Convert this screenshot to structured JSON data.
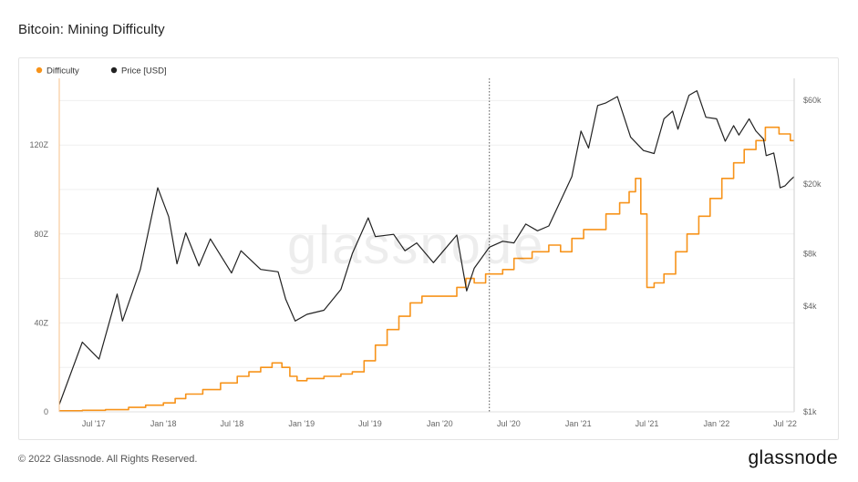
{
  "page": {
    "title": "Bitcoin: Mining Difficulty",
    "copyright": "© 2022 Glassnode. All Rights Reserved.",
    "brand": "glassnode",
    "watermark": "glassnode"
  },
  "chart_data": {
    "type": "line",
    "title": "Bitcoin: Mining Difficulty",
    "legend": {
      "position": "top-left",
      "entries": [
        {
          "name": "Difficulty",
          "color": "#f7931a"
        },
        {
          "name": "Price [USD]",
          "color": "#222222"
        }
      ]
    },
    "x_ticks": [
      "Jul '17",
      "Jan '18",
      "Jul '18",
      "Jan '19",
      "Jul '19",
      "Jan '20",
      "Jul '20",
      "Jan '21",
      "Jul '21",
      "Jan '22",
      "Jul '22"
    ],
    "x_range": [
      "2017-04-01",
      "2022-07-25"
    ],
    "y_left": {
      "ticks": [
        "0",
        "40Z",
        "80Z",
        "120Z"
      ],
      "values": [
        0,
        40,
        80,
        120
      ],
      "range": [
        0,
        150
      ],
      "unit": "Z"
    },
    "y_right": {
      "ticks": [
        "$1k",
        "$4k",
        "$8k",
        "$20k",
        "$60k"
      ],
      "values": [
        1000,
        4000,
        8000,
        20000,
        60000
      ],
      "range": [
        1000,
        80000
      ],
      "scale": "log"
    },
    "grid": true,
    "marker_date": "2020-05-11",
    "series": [
      {
        "name": "Difficulty",
        "axis": "left",
        "color": "#f7931a",
        "step": true,
        "points": [
          [
            "2017-04-01",
            0.5
          ],
          [
            "2017-06-01",
            0.7
          ],
          [
            "2017-08-01",
            1.0
          ],
          [
            "2017-10-01",
            2.0
          ],
          [
            "2017-11-15",
            3.0
          ],
          [
            "2018-01-01",
            4.0
          ],
          [
            "2018-02-01",
            6.0
          ],
          [
            "2018-03-01",
            8.0
          ],
          [
            "2018-04-15",
            10.0
          ],
          [
            "2018-06-01",
            13.0
          ],
          [
            "2018-07-15",
            16.0
          ],
          [
            "2018-08-15",
            18.0
          ],
          [
            "2018-09-15",
            20.0
          ],
          [
            "2018-10-15",
            22.0
          ],
          [
            "2018-11-10",
            20.0
          ],
          [
            "2018-12-01",
            16.0
          ],
          [
            "2018-12-20",
            14.0
          ],
          [
            "2019-01-15",
            15.0
          ],
          [
            "2019-03-01",
            16.0
          ],
          [
            "2019-04-15",
            17.0
          ],
          [
            "2019-05-15",
            18.0
          ],
          [
            "2019-06-15",
            23.0
          ],
          [
            "2019-07-15",
            30.0
          ],
          [
            "2019-08-15",
            37.0
          ],
          [
            "2019-09-15",
            43.0
          ],
          [
            "2019-10-15",
            49.0
          ],
          [
            "2019-11-15",
            52.0
          ],
          [
            "2020-01-01",
            52.0
          ],
          [
            "2020-02-15",
            56.0
          ],
          [
            "2020-03-10",
            60.0
          ],
          [
            "2020-04-01",
            58.0
          ],
          [
            "2020-05-01",
            62.0
          ],
          [
            "2020-06-15",
            64.0
          ],
          [
            "2020-07-15",
            69.0
          ],
          [
            "2020-09-01",
            72.0
          ],
          [
            "2020-10-15",
            75.0
          ],
          [
            "2020-11-15",
            72.0
          ],
          [
            "2020-12-15",
            78.0
          ],
          [
            "2021-01-15",
            82.0
          ],
          [
            "2021-03-15",
            89.0
          ],
          [
            "2021-04-20",
            94.0
          ],
          [
            "2021-05-15",
            99.0
          ],
          [
            "2021-06-01",
            105.0
          ],
          [
            "2021-06-15",
            89.0
          ],
          [
            "2021-07-01",
            56.0
          ],
          [
            "2021-07-20",
            58.0
          ],
          [
            "2021-08-15",
            62.0
          ],
          [
            "2021-09-15",
            72.0
          ],
          [
            "2021-10-15",
            80.0
          ],
          [
            "2021-11-15",
            88.0
          ],
          [
            "2021-12-15",
            96.0
          ],
          [
            "2022-01-15",
            105.0
          ],
          [
            "2022-02-15",
            112.0
          ],
          [
            "2022-03-15",
            118.0
          ],
          [
            "2022-04-15",
            122.0
          ],
          [
            "2022-05-10",
            128.0
          ],
          [
            "2022-06-15",
            125.0
          ],
          [
            "2022-07-15",
            122.0
          ],
          [
            "2022-07-25",
            122.0
          ]
        ]
      },
      {
        "name": "Price [USD]",
        "axis": "right",
        "color": "#222222",
        "step": false,
        "points": [
          [
            "2017-04-01",
            1100
          ],
          [
            "2017-06-01",
            2500
          ],
          [
            "2017-07-15",
            2000
          ],
          [
            "2017-09-01",
            4700
          ],
          [
            "2017-09-15",
            3300
          ],
          [
            "2017-11-01",
            6500
          ],
          [
            "2017-12-17",
            19000
          ],
          [
            "2018-01-15",
            13000
          ],
          [
            "2018-02-06",
            7000
          ],
          [
            "2018-03-01",
            10500
          ],
          [
            "2018-04-05",
            6800
          ],
          [
            "2018-05-05",
            9700
          ],
          [
            "2018-06-30",
            6200
          ],
          [
            "2018-07-25",
            8300
          ],
          [
            "2018-09-15",
            6500
          ],
          [
            "2018-10-31",
            6300
          ],
          [
            "2018-11-20",
            4400
          ],
          [
            "2018-12-15",
            3300
          ],
          [
            "2019-01-15",
            3600
          ],
          [
            "2019-03-01",
            3800
          ],
          [
            "2019-04-15",
            5000
          ],
          [
            "2019-05-15",
            8000
          ],
          [
            "2019-06-26",
            12800
          ],
          [
            "2019-07-15",
            10000
          ],
          [
            "2019-09-01",
            10300
          ],
          [
            "2019-10-01",
            8300
          ],
          [
            "2019-11-01",
            9200
          ],
          [
            "2019-12-15",
            7100
          ],
          [
            "2020-02-15",
            10200
          ],
          [
            "2020-03-12",
            4900
          ],
          [
            "2020-04-01",
            6600
          ],
          [
            "2020-05-11",
            8700
          ],
          [
            "2020-06-15",
            9400
          ],
          [
            "2020-07-15",
            9200
          ],
          [
            "2020-08-15",
            11800
          ],
          [
            "2020-09-15",
            10800
          ],
          [
            "2020-10-15",
            11500
          ],
          [
            "2020-11-15",
            16000
          ],
          [
            "2020-12-15",
            22000
          ],
          [
            "2021-01-08",
            40000
          ],
          [
            "2021-01-28",
            32000
          ],
          [
            "2021-02-21",
            56000
          ],
          [
            "2021-03-15",
            58000
          ],
          [
            "2021-04-14",
            63000
          ],
          [
            "2021-05-19",
            37000
          ],
          [
            "2021-06-22",
            31000
          ],
          [
            "2021-07-20",
            29800
          ],
          [
            "2021-08-15",
            47000
          ],
          [
            "2021-09-07",
            52000
          ],
          [
            "2021-09-21",
            41000
          ],
          [
            "2021-10-20",
            64000
          ],
          [
            "2021-11-10",
            68000
          ],
          [
            "2021-12-04",
            48000
          ],
          [
            "2022-01-01",
            47000
          ],
          [
            "2022-01-24",
            35000
          ],
          [
            "2022-02-15",
            43000
          ],
          [
            "2022-03-01",
            38000
          ],
          [
            "2022-03-28",
            47000
          ],
          [
            "2022-04-15",
            40000
          ],
          [
            "2022-05-05",
            36000
          ],
          [
            "2022-05-12",
            29000
          ],
          [
            "2022-06-01",
            30000
          ],
          [
            "2022-06-13",
            22000
          ],
          [
            "2022-06-18",
            19000
          ],
          [
            "2022-07-01",
            19500
          ],
          [
            "2022-07-15",
            21000
          ],
          [
            "2022-07-25",
            22000
          ]
        ]
      }
    ]
  }
}
